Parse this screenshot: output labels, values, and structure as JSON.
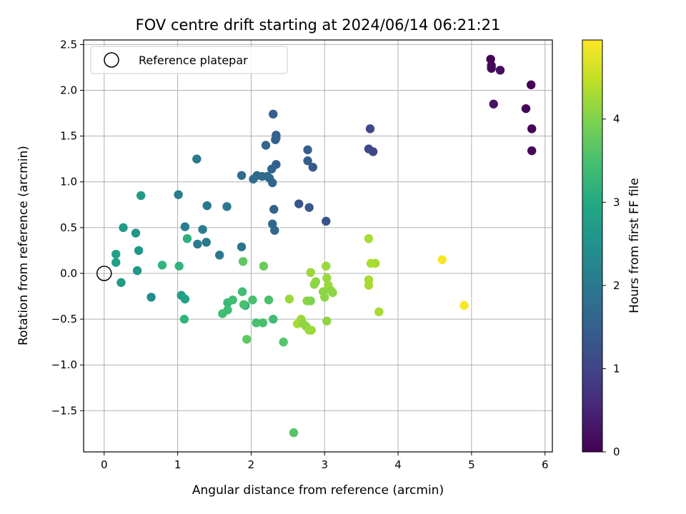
{
  "chart_data": {
    "type": "scatter",
    "title": "FOV centre drift starting at 2024/06/14 06:21:21",
    "xlabel": "Angular distance from reference (arcmin)",
    "ylabel": "Rotation from reference (arcmin)",
    "xlim": [
      -0.28,
      6.1
    ],
    "ylim": [
      -1.95,
      2.55
    ],
    "x_ticks": [
      0,
      1,
      2,
      3,
      4,
      5,
      6
    ],
    "x_tick_labels": [
      "0",
      "1",
      "2",
      "3",
      "4",
      "5",
      "6"
    ],
    "y_ticks": [
      -1.5,
      -1.0,
      -0.5,
      0.0,
      0.5,
      1.0,
      1.5,
      2.0,
      2.5
    ],
    "y_tick_labels": [
      "−1.5",
      "−1.0",
      "−0.5",
      "0.0",
      "0.5",
      "1.0",
      "1.5",
      "2.0",
      "2.5"
    ],
    "grid": true,
    "legend": {
      "position": "top-left",
      "entries": [
        {
          "label": "Reference platepar",
          "marker": "open-circle",
          "color": "#000000"
        }
      ]
    },
    "reference_point": {
      "x": 0.0,
      "y": 0.0
    },
    "colorbar": {
      "label": "Hours from first FF file",
      "colormap": "viridis",
      "range": [
        0,
        4.95
      ],
      "ticks": [
        0,
        1,
        2,
        3,
        4
      ],
      "tick_labels": [
        "0",
        "1",
        "2",
        "3",
        "4"
      ]
    },
    "series": [
      {
        "points": [
          {
            "x": 5.26,
            "y": 2.34,
            "c": 0.05
          },
          {
            "x": 5.27,
            "y": 2.27,
            "c": 0.08
          },
          {
            "x": 5.27,
            "y": 2.24,
            "c": 0.12
          },
          {
            "x": 5.39,
            "y": 2.22,
            "c": 0.18
          },
          {
            "x": 5.81,
            "y": 2.06,
            "c": 0.02
          },
          {
            "x": 5.3,
            "y": 1.85,
            "c": 0.25
          },
          {
            "x": 5.74,
            "y": 1.8,
            "c": 0.03
          },
          {
            "x": 5.82,
            "y": 1.58,
            "c": 0.05
          },
          {
            "x": 5.82,
            "y": 1.34,
            "c": 0.1
          },
          {
            "x": 3.62,
            "y": 1.58,
            "c": 1.05
          },
          {
            "x": 3.6,
            "y": 1.36,
            "c": 1.1
          },
          {
            "x": 3.66,
            "y": 1.33,
            "c": 1.0
          },
          {
            "x": 2.3,
            "y": 1.74,
            "c": 1.5
          },
          {
            "x": 2.34,
            "y": 1.51,
            "c": 1.5
          },
          {
            "x": 2.34,
            "y": 1.48,
            "c": 1.55
          },
          {
            "x": 2.33,
            "y": 1.46,
            "c": 1.55
          },
          {
            "x": 2.2,
            "y": 1.4,
            "c": 1.6
          },
          {
            "x": 2.77,
            "y": 1.35,
            "c": 1.5
          },
          {
            "x": 2.77,
            "y": 1.23,
            "c": 1.5
          },
          {
            "x": 2.84,
            "y": 1.16,
            "c": 1.4
          },
          {
            "x": 2.34,
            "y": 1.19,
            "c": 1.5
          },
          {
            "x": 2.28,
            "y": 1.14,
            "c": 1.6
          },
          {
            "x": 2.08,
            "y": 1.07,
            "c": 1.7
          },
          {
            "x": 2.15,
            "y": 1.06,
            "c": 1.7
          },
          {
            "x": 2.22,
            "y": 1.06,
            "c": 1.7
          },
          {
            "x": 2.03,
            "y": 1.03,
            "c": 1.75
          },
          {
            "x": 2.25,
            "y": 1.04,
            "c": 1.7
          },
          {
            "x": 1.87,
            "y": 1.07,
            "c": 1.75
          },
          {
            "x": 2.29,
            "y": 0.99,
            "c": 1.6
          },
          {
            "x": 2.65,
            "y": 0.76,
            "c": 1.3
          },
          {
            "x": 2.79,
            "y": 0.72,
            "c": 1.4
          },
          {
            "x": 2.31,
            "y": 0.7,
            "c": 1.55
          },
          {
            "x": 3.02,
            "y": 0.57,
            "c": 1.3
          },
          {
            "x": 2.29,
            "y": 0.54,
            "c": 1.65
          },
          {
            "x": 2.32,
            "y": 0.47,
            "c": 1.65
          },
          {
            "x": 1.26,
            "y": 1.25,
            "c": 2.0
          },
          {
            "x": 1.01,
            "y": 0.86,
            "c": 2.05
          },
          {
            "x": 1.4,
            "y": 0.74,
            "c": 2.0
          },
          {
            "x": 1.67,
            "y": 0.73,
            "c": 2.0
          },
          {
            "x": 1.1,
            "y": 0.51,
            "c": 2.1
          },
          {
            "x": 1.34,
            "y": 0.48,
            "c": 2.05
          },
          {
            "x": 1.27,
            "y": 0.32,
            "c": 2.05
          },
          {
            "x": 1.39,
            "y": 0.34,
            "c": 2.0
          },
          {
            "x": 1.87,
            "y": 0.29,
            "c": 1.9
          },
          {
            "x": 1.57,
            "y": 0.2,
            "c": 2.0
          },
          {
            "x": 0.5,
            "y": 0.85,
            "c": 2.7
          },
          {
            "x": 0.26,
            "y": 0.5,
            "c": 2.65
          },
          {
            "x": 0.43,
            "y": 0.44,
            "c": 2.6
          },
          {
            "x": 0.47,
            "y": 0.25,
            "c": 2.6
          },
          {
            "x": 0.16,
            "y": 0.21,
            "c": 2.8
          },
          {
            "x": 0.16,
            "y": 0.12,
            "c": 2.8
          },
          {
            "x": 0.45,
            "y": 0.03,
            "c": 2.6
          },
          {
            "x": 0.23,
            "y": -0.1,
            "c": 2.7
          },
          {
            "x": 0.64,
            "y": -0.26,
            "c": 2.4
          },
          {
            "x": 1.13,
            "y": 0.38,
            "c": 3.15
          },
          {
            "x": 0.79,
            "y": 0.09,
            "c": 3.2
          },
          {
            "x": 1.02,
            "y": 0.08,
            "c": 3.2
          },
          {
            "x": 1.05,
            "y": -0.24,
            "c": 2.8
          },
          {
            "x": 1.1,
            "y": -0.28,
            "c": 2.8
          },
          {
            "x": 1.09,
            "y": -0.5,
            "c": 3.2
          },
          {
            "x": 1.92,
            "y": -0.35,
            "c": 3.0
          },
          {
            "x": 1.88,
            "y": -0.2,
            "c": 3.4
          },
          {
            "x": 1.68,
            "y": -0.32,
            "c": 3.3
          },
          {
            "x": 1.75,
            "y": -0.29,
            "c": 3.4
          },
          {
            "x": 1.68,
            "y": -0.4,
            "c": 3.4
          },
          {
            "x": 1.61,
            "y": -0.44,
            "c": 3.4
          },
          {
            "x": 1.9,
            "y": -0.34,
            "c": 3.5
          },
          {
            "x": 2.02,
            "y": -0.29,
            "c": 3.5
          },
          {
            "x": 2.24,
            "y": -0.29,
            "c": 3.5
          },
          {
            "x": 2.3,
            "y": -0.5,
            "c": 3.4
          },
          {
            "x": 2.07,
            "y": -0.54,
            "c": 3.5
          },
          {
            "x": 2.16,
            "y": -0.54,
            "c": 3.5
          },
          {
            "x": 1.94,
            "y": -0.72,
            "c": 3.7
          },
          {
            "x": 2.44,
            "y": -0.75,
            "c": 3.6
          },
          {
            "x": 2.58,
            "y": -1.74,
            "c": 3.6
          },
          {
            "x": 1.89,
            "y": 0.13,
            "c": 3.7
          },
          {
            "x": 2.17,
            "y": 0.08,
            "c": 3.8
          },
          {
            "x": 2.52,
            "y": -0.28,
            "c": 4.2
          },
          {
            "x": 2.76,
            "y": -0.3,
            "c": 4.1
          },
          {
            "x": 2.81,
            "y": -0.3,
            "c": 4.0
          },
          {
            "x": 2.63,
            "y": -0.55,
            "c": 4.3
          },
          {
            "x": 2.68,
            "y": -0.5,
            "c": 4.2
          },
          {
            "x": 2.71,
            "y": -0.55,
            "c": 4.1
          },
          {
            "x": 2.75,
            "y": -0.58,
            "c": 4.1
          },
          {
            "x": 2.79,
            "y": -0.62,
            "c": 4.2
          },
          {
            "x": 2.82,
            "y": -0.62,
            "c": 4.2
          },
          {
            "x": 2.81,
            "y": 0.01,
            "c": 4.2
          },
          {
            "x": 2.86,
            "y": -0.12,
            "c": 4.1
          },
          {
            "x": 2.88,
            "y": -0.09,
            "c": 4.1
          },
          {
            "x": 3.02,
            "y": 0.08,
            "c": 4.2
          },
          {
            "x": 3.03,
            "y": -0.05,
            "c": 4.2
          },
          {
            "x": 3.05,
            "y": -0.13,
            "c": 4.2
          },
          {
            "x": 2.98,
            "y": -0.2,
            "c": 4.1
          },
          {
            "x": 3.09,
            "y": -0.19,
            "c": 4.1
          },
          {
            "x": 3.11,
            "y": -0.21,
            "c": 4.1
          },
          {
            "x": 3.0,
            "y": -0.26,
            "c": 4.1
          },
          {
            "x": 3.03,
            "y": -0.52,
            "c": 4.1
          },
          {
            "x": 3.6,
            "y": 0.38,
            "c": 4.3
          },
          {
            "x": 3.63,
            "y": 0.11,
            "c": 4.3
          },
          {
            "x": 3.69,
            "y": 0.11,
            "c": 4.3
          },
          {
            "x": 3.6,
            "y": -0.07,
            "c": 4.3
          },
          {
            "x": 3.6,
            "y": -0.13,
            "c": 4.3
          },
          {
            "x": 3.74,
            "y": -0.42,
            "c": 4.3
          },
          {
            "x": 4.6,
            "y": 0.15,
            "c": 4.9
          },
          {
            "x": 4.9,
            "y": -0.35,
            "c": 4.9
          }
        ]
      }
    ]
  }
}
